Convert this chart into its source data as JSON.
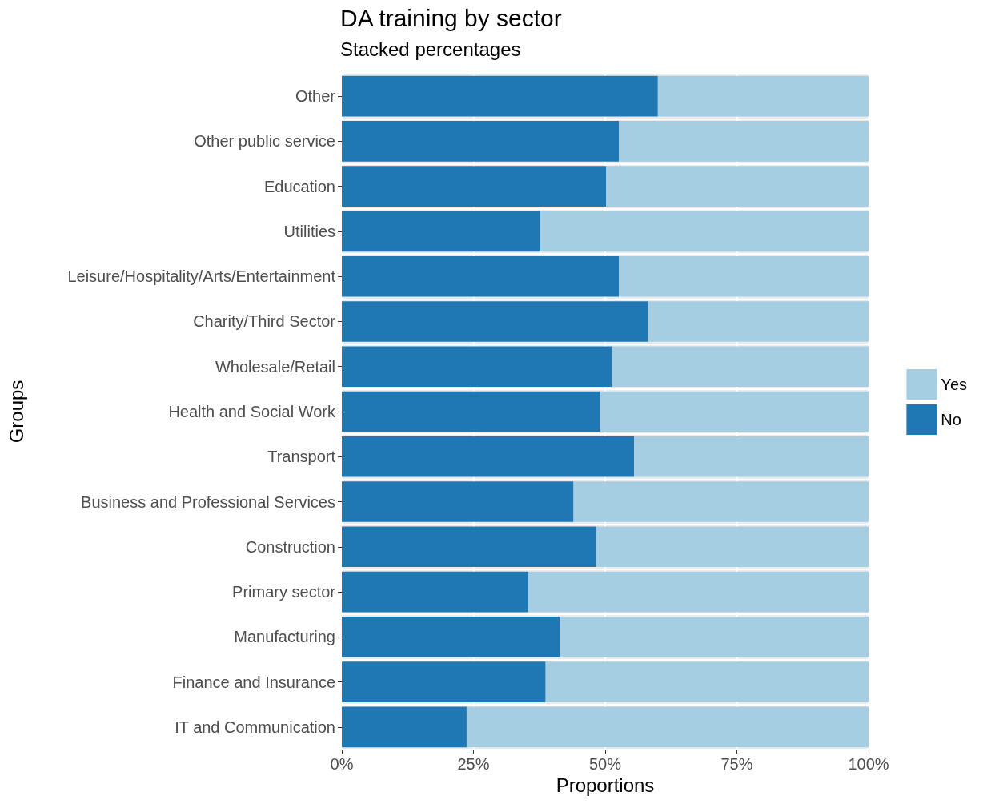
{
  "chart_data": {
    "type": "bar",
    "orientation": "horizontal",
    "stacked": true,
    "title": "DA training by sector",
    "subtitle": "Stacked percentages",
    "xlabel": "Proportions",
    "ylabel": "Groups",
    "categories": [
      "Other",
      "Other public service",
      "Education",
      "Utilities",
      "Leisure/Hospitality/Arts/Entertainment",
      "Charity/Third Sector",
      "Wholesale/Retail",
      "Health and Social Work",
      "Transport",
      "Business and Professional Services",
      "Construction",
      "Primary sector",
      "Manufacturing",
      "Finance and Insurance",
      "IT and Communication"
    ],
    "series": [
      {
        "name": "No",
        "color": "#1f78b4",
        "values": [
          60,
          52.6,
          50.2,
          37.7,
          52.6,
          58.1,
          51.3,
          49,
          55.5,
          44,
          48.3,
          35.4,
          41.4,
          38.7,
          23.7
        ]
      },
      {
        "name": "Yes",
        "color": "#a6cee3",
        "values": [
          40,
          47.4,
          49.8,
          62.3,
          47.4,
          41.9,
          48.7,
          51,
          44.5,
          56,
          51.7,
          64.6,
          58.6,
          61.3,
          76.3
        ]
      }
    ],
    "xlim": [
      0,
      100
    ],
    "xticks": [
      {
        "value": 0,
        "label": "0%"
      },
      {
        "value": 25,
        "label": "25%"
      },
      {
        "value": 50,
        "label": "50%"
      },
      {
        "value": 75,
        "label": "75%"
      },
      {
        "value": 100,
        "label": "100%"
      }
    ],
    "grid": true,
    "legend": "right"
  }
}
